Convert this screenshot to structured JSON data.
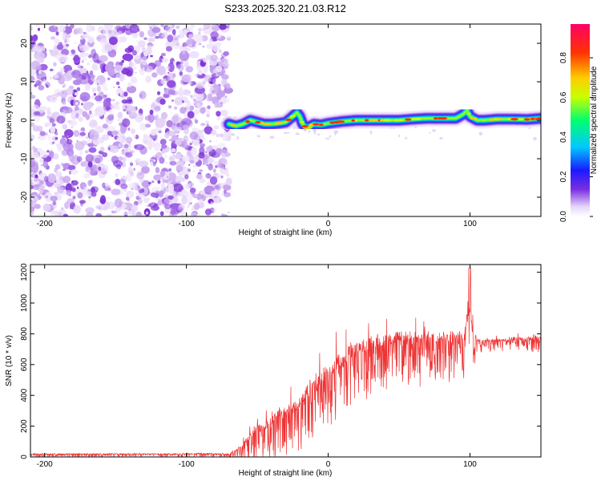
{
  "title": "S233.2025.320.21.03.R12",
  "colors": {
    "axis": "#000000",
    "snr_line": "#ee3333",
    "noise_purple": "#8a2be2"
  },
  "chart_data": [
    {
      "type": "heatmap",
      "xlabel": "Height of straight line (km)",
      "ylabel": "Frequency (Hz)",
      "xlim": [
        -210,
        150
      ],
      "ylim": [
        -25,
        25
      ],
      "x_ticks": [
        -200,
        -100,
        0,
        100
      ],
      "y_ticks": [
        -20,
        -10,
        0,
        10,
        20
      ],
      "colorbar": {
        "label": "Normalized spectral amplitude",
        "range": [
          0.0,
          0.97
        ],
        "ticks": [
          "0.0",
          "0.2",
          "0.4",
          "0.6",
          "0.8"
        ],
        "tick_values": [
          0.0,
          0.2,
          0.4,
          0.6,
          0.8
        ],
        "colorscale": [
          "#ffffff",
          "#e6d6fa",
          "#7b2fe0",
          "#1a1aff",
          "#00c8ff",
          "#00ff70",
          "#c8ff00",
          "#ffcc00",
          "#ff3300",
          "#ff0066"
        ]
      },
      "noise_region_x": [
        -210,
        -70
      ],
      "signal_region_x": [
        -70,
        150
      ],
      "carrier_trace": {
        "x": [
          -70,
          -65,
          -60,
          -55,
          -50,
          -45,
          -40,
          -35,
          -30,
          -25,
          -22,
          -20,
          -18,
          -15,
          -10,
          -5,
          0,
          10,
          20,
          30,
          40,
          50,
          60,
          70,
          80,
          90,
          95,
          98,
          100,
          105,
          110,
          120,
          130,
          140,
          150
        ],
        "y": [
          -1,
          -1.5,
          -1,
          0,
          -0.5,
          -1,
          -1,
          -0.8,
          -0.5,
          1,
          2,
          1,
          -1,
          -2,
          -1,
          -1.2,
          -0.8,
          -0.3,
          0,
          0,
          0,
          0,
          0.3,
          0.5,
          0.5,
          0.5,
          1.5,
          2.5,
          1,
          0,
          0,
          0.3,
          0.3,
          0.2,
          0.5
        ]
      }
    },
    {
      "type": "line",
      "xlabel": "Height of straight line (km)",
      "ylabel": "SNR (10 * v/v)",
      "xlim": [
        -210,
        150
      ],
      "ylim": [
        0,
        1250
      ],
      "x_ticks": [
        -200,
        -100,
        0,
        100
      ],
      "y_ticks": [
        0,
        200,
        400,
        600,
        800,
        1000,
        1200
      ],
      "series": [
        {
          "x": [
            -210,
            -190,
            -170,
            -150,
            -130,
            -110,
            -90,
            -70,
            -65,
            -60,
            -55,
            -50,
            -45,
            -40,
            -35,
            -30,
            -25,
            -20,
            -15,
            -10,
            -5,
            0,
            5,
            10,
            15,
            20,
            25,
            30,
            35,
            40,
            45,
            50,
            55,
            60,
            65,
            70,
            75,
            80,
            85,
            90,
            95,
            98,
            100,
            102,
            105,
            110,
            115,
            120,
            125,
            130,
            135,
            140,
            145,
            150
          ],
          "mean": [
            20,
            20,
            20,
            20,
            20,
            20,
            22,
            20,
            40,
            80,
            140,
            180,
            200,
            240,
            280,
            300,
            320,
            360,
            420,
            460,
            520,
            560,
            600,
            650,
            680,
            700,
            720,
            740,
            760,
            760,
            770,
            780,
            780,
            780,
            780,
            780,
            780,
            780,
            780,
            780,
            800,
            900,
            950,
            800,
            760,
            760,
            760,
            760,
            760,
            770,
            770,
            770,
            770,
            770
          ],
          "spread": [
            20,
            20,
            20,
            20,
            20,
            20,
            25,
            25,
            60,
            120,
            180,
            200,
            220,
            240,
            260,
            280,
            300,
            320,
            340,
            360,
            380,
            400,
            420,
            420,
            400,
            380,
            360,
            340,
            320,
            320,
            300,
            300,
            300,
            300,
            300,
            300,
            300,
            300,
            300,
            300,
            300,
            300,
            300,
            300,
            80,
            80,
            80,
            80,
            80,
            80,
            80,
            80,
            80,
            80
          ]
        }
      ]
    }
  ]
}
